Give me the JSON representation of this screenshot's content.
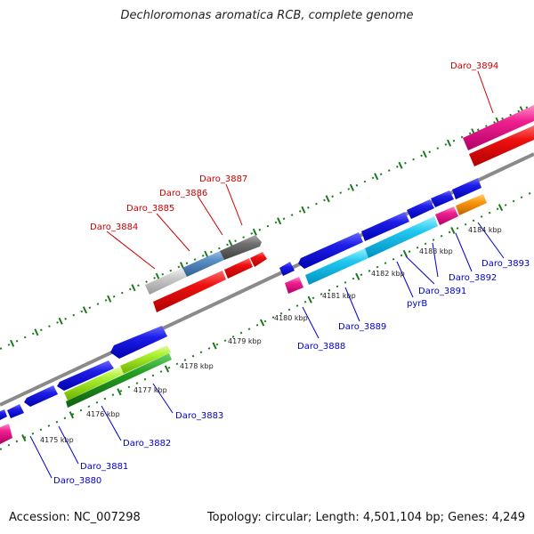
{
  "title": "Dechloromonas aromatica RCB, complete genome",
  "footer": {
    "accession": "Accession: NC_007298",
    "summary": "Topology: circular; Length: 4,501,104 bp; Genes: 4,249"
  },
  "colors": {
    "forward_label": "#cc0000",
    "reverse_label": "#0000cc",
    "backbone": "#8a8a8a",
    "tick": "#1a7a1a"
  },
  "scale_ticks": [
    "4175 kbp",
    "4176 kbp",
    "4177 kbp",
    "4178 kbp",
    "4179 kbp",
    "4180 kbp",
    "4181 kbp",
    "4182 kbp",
    "4183 kbp",
    "4184 kbp"
  ],
  "forward_genes": [
    {
      "name": "Daro_3884",
      "color": "silver"
    },
    {
      "name": "Daro_3885",
      "color": "steel-blue"
    },
    {
      "name": "Daro_3886",
      "color": "dark-gray"
    },
    {
      "name": "Daro_3887",
      "color": "dark-gray"
    },
    {
      "name": "Daro_3894",
      "color": "magenta"
    }
  ],
  "reverse_genes": [
    {
      "name": "Daro_3880",
      "color": "blue"
    },
    {
      "name": "Daro_3881",
      "color": "blue"
    },
    {
      "name": "Daro_3882",
      "color": "green"
    },
    {
      "name": "Daro_3883",
      "color": "lime"
    },
    {
      "name": "Daro_3888",
      "color": "blue"
    },
    {
      "name": "Daro_3889",
      "color": "cyan"
    },
    {
      "name": "pyrB",
      "color": "cyan"
    },
    {
      "name": "Daro_3891",
      "color": "magenta"
    },
    {
      "name": "Daro_3892",
      "color": "blue"
    },
    {
      "name": "Daro_3893",
      "color": "orange"
    }
  ]
}
